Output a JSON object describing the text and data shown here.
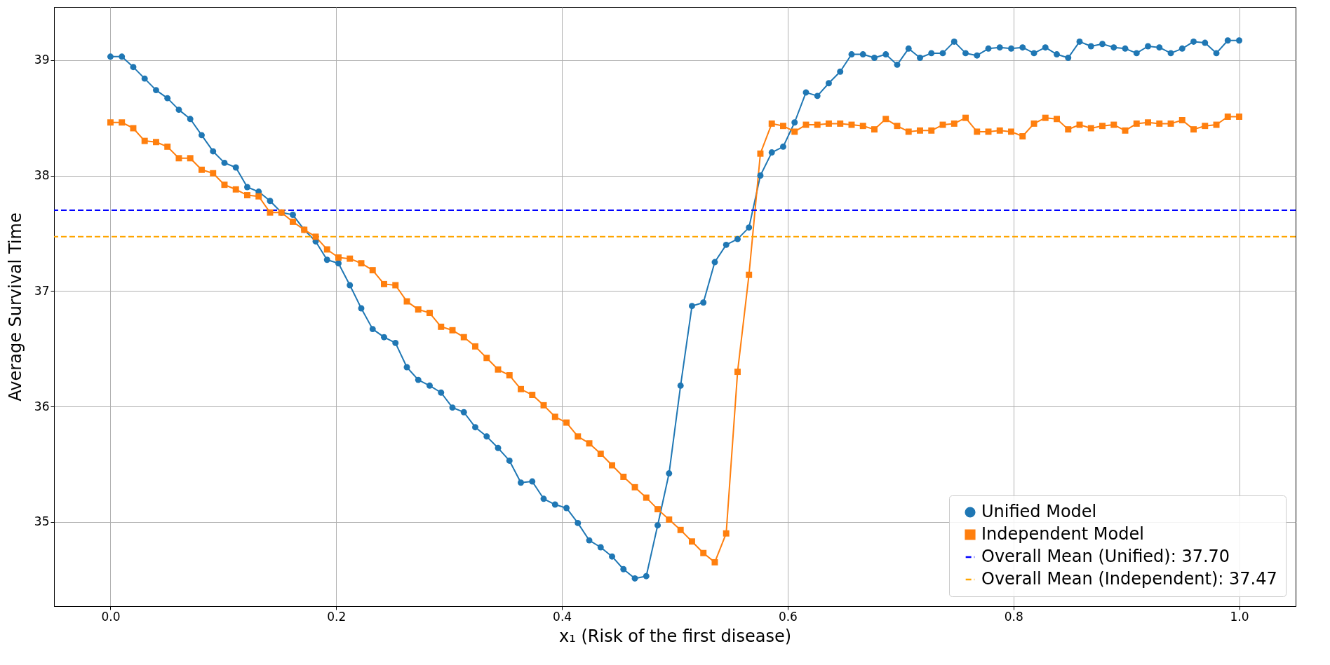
{
  "chart_data": {
    "type": "line",
    "xlabel": "x₁ (Risk of the first disease)",
    "ylabel": "Average Survival Time",
    "x": [
      0,
      0.0101,
      0.0202,
      0.0303,
      0.0404,
      0.0505,
      0.0606,
      0.0707,
      0.0808,
      0.0909,
      0.101,
      0.1111,
      0.1212,
      0.1313,
      0.1414,
      0.1515,
      0.1616,
      0.1717,
      0.1818,
      0.1919,
      0.202,
      0.2121,
      0.2222,
      0.2323,
      0.2424,
      0.2525,
      0.2626,
      0.2727,
      0.2828,
      0.2929,
      0.303,
      0.3131,
      0.3232,
      0.3333,
      0.3434,
      0.3535,
      0.3636,
      0.3737,
      0.3838,
      0.3939,
      0.404,
      0.4141,
      0.4242,
      0.4343,
      0.4444,
      0.4545,
      0.4646,
      0.4747,
      0.4848,
      0.4949,
      0.5051,
      0.5152,
      0.5253,
      0.5354,
      0.5455,
      0.5556,
      0.5657,
      0.5758,
      0.5859,
      0.596,
      0.6061,
      0.6162,
      0.6263,
      0.6364,
      0.6465,
      0.6566,
      0.6667,
      0.6768,
      0.6869,
      0.697,
      0.7071,
      0.7172,
      0.7273,
      0.7374,
      0.7475,
      0.7576,
      0.7677,
      0.7778,
      0.7879,
      0.798,
      0.8081,
      0.8182,
      0.8283,
      0.8384,
      0.8485,
      0.8586,
      0.8687,
      0.8788,
      0.8889,
      0.899,
      0.9091,
      0.9192,
      0.9293,
      0.9394,
      0.9495,
      0.9596,
      0.9697,
      0.9798,
      0.9899,
      1
    ],
    "series": [
      {
        "name": "Unified Model",
        "color": "#1f77b4",
        "marker": "circle",
        "values": [
          39.03,
          39.03,
          38.94,
          38.84,
          38.74,
          38.67,
          38.57,
          38.49,
          38.35,
          38.21,
          38.11,
          38.07,
          37.9,
          37.86,
          37.78,
          37.68,
          37.66,
          37.53,
          37.43,
          37.27,
          37.24,
          37.05,
          36.85,
          36.67,
          36.6,
          36.55,
          36.34,
          36.23,
          36.18,
          36.12,
          35.99,
          35.95,
          35.82,
          35.74,
          35.64,
          35.53,
          35.34,
          35.35,
          35.2,
          35.15,
          35.12,
          34.99,
          34.84,
          34.78,
          34.7,
          34.59,
          34.51,
          34.53,
          34.97,
          35.42,
          36.18,
          36.87,
          36.9,
          37.25,
          37.4,
          37.45,
          37.55,
          38.0,
          38.2,
          38.25,
          38.46,
          38.72,
          38.69,
          38.8,
          38.9,
          39.05,
          39.05,
          39.02,
          39.05,
          38.96,
          39.1,
          39.02,
          39.06,
          39.06,
          39.16,
          39.06,
          39.04,
          39.1,
          39.11,
          39.1,
          39.11,
          39.06,
          39.11,
          39.05,
          39.02,
          39.16,
          39.12,
          39.14,
          39.11,
          39.1,
          39.06,
          39.12,
          39.11,
          39.06,
          39.1,
          39.16,
          39.15,
          39.06,
          39.17,
          39.17
        ]
      },
      {
        "name": "Independent Model",
        "color": "#ff7f0e",
        "marker": "square",
        "values": [
          38.46,
          38.46,
          38.41,
          38.3,
          38.29,
          38.25,
          38.15,
          38.15,
          38.05,
          38.02,
          37.92,
          37.88,
          37.83,
          37.82,
          37.68,
          37.68,
          37.6,
          37.53,
          37.47,
          37.36,
          37.29,
          37.28,
          37.24,
          37.18,
          37.06,
          37.05,
          36.91,
          36.84,
          36.81,
          36.69,
          36.66,
          36.6,
          36.52,
          36.42,
          36.32,
          36.27,
          36.15,
          36.1,
          36.01,
          35.91,
          35.86,
          35.74,
          35.68,
          35.59,
          35.49,
          35.39,
          35.3,
          35.21,
          35.11,
          35.02,
          34.93,
          34.83,
          34.73,
          34.65,
          34.9,
          36.3,
          37.14,
          38.19,
          38.45,
          38.43,
          38.38,
          38.44,
          38.44,
          38.45,
          38.45,
          38.44,
          38.43,
          38.4,
          38.49,
          38.43,
          38.38,
          38.39,
          38.39,
          38.44,
          38.45,
          38.5,
          38.38,
          38.38,
          38.39,
          38.38,
          38.34,
          38.45,
          38.5,
          38.49,
          38.4,
          38.44,
          38.41,
          38.43,
          38.44,
          38.39,
          38.45,
          38.46,
          38.45,
          38.45,
          38.48,
          38.4,
          38.43,
          38.44,
          38.51,
          38.51
        ]
      }
    ],
    "ref_lines": [
      {
        "axis": "y",
        "value": 37.7,
        "label": "Overall Mean (Unified): 37.70",
        "color": "#0000ff",
        "line_style": "dashed"
      },
      {
        "axis": "y",
        "value": 37.47,
        "label": "Overall Mean (Independent): 37.47",
        "color": "#ffa500",
        "line_style": "dashed"
      }
    ],
    "xlim": [
      -0.05,
      1.05
    ],
    "ylim": [
      34.27,
      39.46
    ],
    "xticks": [
      {
        "value": 0,
        "label": "0.0"
      },
      {
        "value": 0.2,
        "label": "0.2"
      },
      {
        "value": 0.4,
        "label": "0.4"
      },
      {
        "value": 0.6,
        "label": "0.6"
      },
      {
        "value": 0.8,
        "label": "0.8"
      },
      {
        "value": 1,
        "label": "1.0"
      }
    ],
    "yticks": [
      35,
      36,
      37,
      38,
      39
    ],
    "grid": true,
    "legend": "bottom right",
    "line_style": "solid"
  }
}
